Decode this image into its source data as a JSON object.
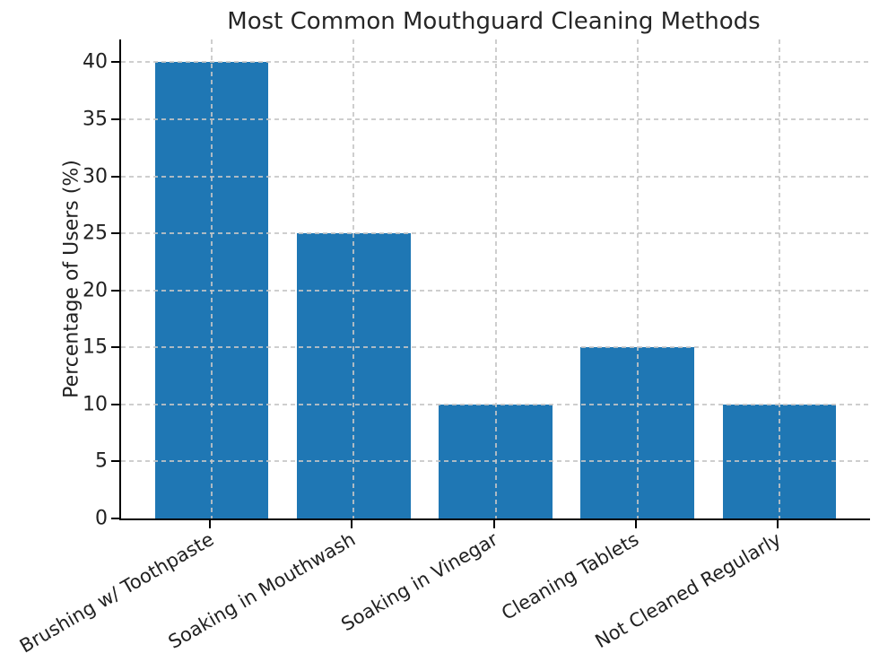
{
  "chart_data": {
    "type": "bar",
    "title": "Most Common Mouthguard Cleaning Methods",
    "xlabel": "",
    "ylabel": "Percentage of Users (%)",
    "categories": [
      "Brushing w/ Toothpaste",
      "Soaking in Mouthwash",
      "Soaking in Vinegar",
      "Cleaning Tablets",
      "Not Cleaned Regularly"
    ],
    "values": [
      40,
      25,
      10,
      15,
      10
    ],
    "yticks": [
      0,
      5,
      10,
      15,
      20,
      25,
      30,
      35,
      40
    ],
    "ylim": [
      0,
      42
    ],
    "bar_width_fraction": 0.8,
    "grid": "dashed both axes, drawn above bars",
    "legend_position": "none",
    "colors": {
      "bar": "#1f77b4",
      "grid": "#c6c6c6",
      "spine": "#000000",
      "text": "#212121"
    }
  }
}
